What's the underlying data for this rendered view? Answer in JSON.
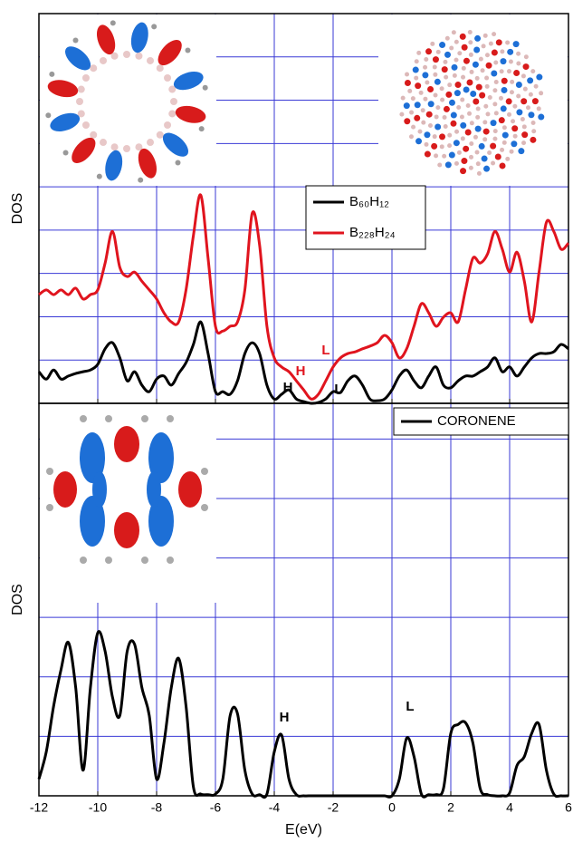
{
  "chart_data": [
    {
      "type": "line",
      "ylabel": "DOS",
      "legend": "upper center",
      "grid": true,
      "show_xtick_labels": false,
      "xlim": [
        -12,
        6
      ],
      "xticks": [
        -12,
        -10,
        -8,
        -6,
        -4,
        -2,
        0,
        2,
        4,
        6
      ],
      "ylim": [
        0,
        9
      ],
      "yticks": [
        1,
        2,
        3,
        4,
        5,
        6,
        7,
        8
      ],
      "x": [
        -12,
        -11.75,
        -11.5,
        -11.25,
        -11,
        -10.75,
        -10.5,
        -10.25,
        -10,
        -9.75,
        -9.5,
        -9.25,
        -9,
        -8.75,
        -8.5,
        -8.25,
        -8,
        -7.75,
        -7.5,
        -7.25,
        -7,
        -6.75,
        -6.5,
        -6.25,
        -6,
        -5.75,
        -5.5,
        -5.25,
        -5,
        -4.75,
        -4.5,
        -4.25,
        -4,
        -3.75,
        -3.5,
        -3.25,
        -3,
        -2.75,
        -2.5,
        -2.25,
        -2,
        -1.75,
        -1.5,
        -1.25,
        -1,
        -0.75,
        -0.5,
        -0.25,
        0,
        0.25,
        0.5,
        0.75,
        1,
        1.25,
        1.5,
        1.75,
        2,
        2.25,
        2.5,
        2.75,
        3,
        3.25,
        3.5,
        3.75,
        4,
        4.25,
        4.5,
        4.75,
        5,
        5.25,
        5.5,
        5.75,
        6
      ],
      "series": [
        {
          "name": "B₆₀H₁₂",
          "color": "#000000",
          "values": [
            0.73,
            0.56,
            0.77,
            0.56,
            0.63,
            0.69,
            0.73,
            0.77,
            0.9,
            1.26,
            1.4,
            1.05,
            0.52,
            0.73,
            0.42,
            0.27,
            0.56,
            0.63,
            0.42,
            0.69,
            0.94,
            1.36,
            1.88,
            1.15,
            0.27,
            0.27,
            0.21,
            0.52,
            1.15,
            1.4,
            1.15,
            0.42,
            0.1,
            0.21,
            0.31,
            0.1,
            0.04,
            0,
            0.02,
            0.1,
            0.27,
            0.25,
            0.52,
            0.63,
            0.42,
            0.1,
            0.06,
            0.1,
            0.31,
            0.63,
            0.77,
            0.52,
            0.36,
            0.63,
            0.84,
            0.42,
            0.36,
            0.52,
            0.63,
            0.63,
            0.73,
            0.84,
            1.05,
            0.73,
            0.84,
            0.63,
            0.84,
            1.05,
            1.15,
            1.15,
            1.19,
            1.36,
            1.26
          ]
        },
        {
          "name": "B₂₂₈H₂₄",
          "color": "#e0141e",
          "values": [
            2.51,
            2.62,
            2.51,
            2.62,
            2.51,
            2.66,
            2.41,
            2.51,
            2.62,
            3.24,
            3.97,
            3.14,
            2.93,
            3.03,
            2.82,
            2.62,
            2.41,
            2.09,
            1.88,
            1.88,
            2.62,
            3.87,
            4.81,
            3.35,
            1.78,
            1.67,
            1.78,
            1.88,
            2.62,
            4.39,
            3.66,
            1.78,
            1.05,
            0.84,
            0.73,
            0.52,
            0.31,
            0.1,
            0.21,
            0.52,
            0.84,
            1.05,
            1.15,
            1.19,
            1.26,
            1.32,
            1.4,
            1.57,
            1.4,
            1.05,
            1.26,
            1.78,
            2.3,
            2.09,
            1.78,
            1.99,
            2.09,
            1.88,
            2.62,
            3.35,
            3.24,
            3.45,
            3.97,
            3.56,
            3.03,
            3.49,
            2.82,
            1.88,
            3.03,
            4.18,
            3.97,
            3.56,
            3.7
          ]
        }
      ],
      "annotations": [
        {
          "text": "H",
          "color": "#000000"
        },
        {
          "text": "H",
          "color": "#e0141e"
        },
        {
          "text": "L",
          "color": "#e0141e"
        },
        {
          "text": "L",
          "color": "#000000"
        }
      ]
    },
    {
      "type": "line",
      "ylabel": "DOS",
      "xlabel": "E(eV)",
      "legend": "upper right",
      "grid": true,
      "show_xtick_labels": true,
      "xlim": [
        -12,
        6
      ],
      "xticks": [
        -12,
        -10,
        -8,
        -6,
        -4,
        -2,
        0,
        2,
        4,
        6
      ],
      "ylim": [
        0,
        6.6
      ],
      "yticks": [
        1,
        2,
        3,
        4,
        5,
        6
      ],
      "x": [
        -12,
        -11.75,
        -11.5,
        -11.25,
        -11,
        -10.75,
        -10.5,
        -10.25,
        -10,
        -9.75,
        -9.5,
        -9.25,
        -9,
        -8.75,
        -8.5,
        -8.25,
        -8,
        -7.75,
        -7.5,
        -7.25,
        -7,
        -6.75,
        -6.5,
        -6.25,
        -6,
        -5.75,
        -5.5,
        -5.25,
        -5,
        -4.75,
        -4.5,
        -4.25,
        -4,
        -3.75,
        -3.5,
        -3.25,
        -3,
        -2.75,
        -2.5,
        -2.25,
        -2,
        -1.75,
        -1.5,
        -1.25,
        -1,
        -0.75,
        -0.5,
        -0.25,
        0,
        0.25,
        0.5,
        0.75,
        1,
        1.25,
        1.5,
        1.75,
        2,
        2.25,
        2.5,
        2.75,
        3,
        3.25,
        3.5,
        3.75,
        4,
        4.25,
        4.5,
        4.75,
        5,
        5.25,
        5.5,
        5.75,
        6
      ],
      "series": [
        {
          "name": "CORONENE",
          "color": "#000000",
          "values": [
            0.28,
            0.74,
            1.51,
            2.12,
            2.58,
            1.82,
            0.43,
            1.82,
            2.74,
            2.43,
            1.66,
            1.35,
            2.43,
            2.55,
            1.82,
            1.35,
            0.28,
            0.89,
            1.82,
            2.31,
            1.51,
            0.15,
            0.03,
            0.02,
            0.03,
            0.28,
            1.35,
            1.38,
            0.43,
            0.03,
            0.02,
            0.03,
            0.74,
            1.02,
            0.28,
            0.02,
            0,
            0,
            0,
            0,
            0,
            0,
            0,
            0,
            0,
            0,
            0,
            0,
            0,
            0.28,
            0.97,
            0.66,
            0.03,
            0.02,
            0.02,
            0.12,
            1.05,
            1.2,
            1.23,
            0.89,
            0.12,
            0.02,
            0,
            0,
            0.05,
            0.51,
            0.66,
            1.05,
            1.2,
            0.43,
            0.03,
            0,
            0
          ]
        }
      ],
      "annotations": [
        {
          "text": "H",
          "color": "#000000"
        },
        {
          "text": "L",
          "color": "#000000"
        }
      ]
    }
  ]
}
